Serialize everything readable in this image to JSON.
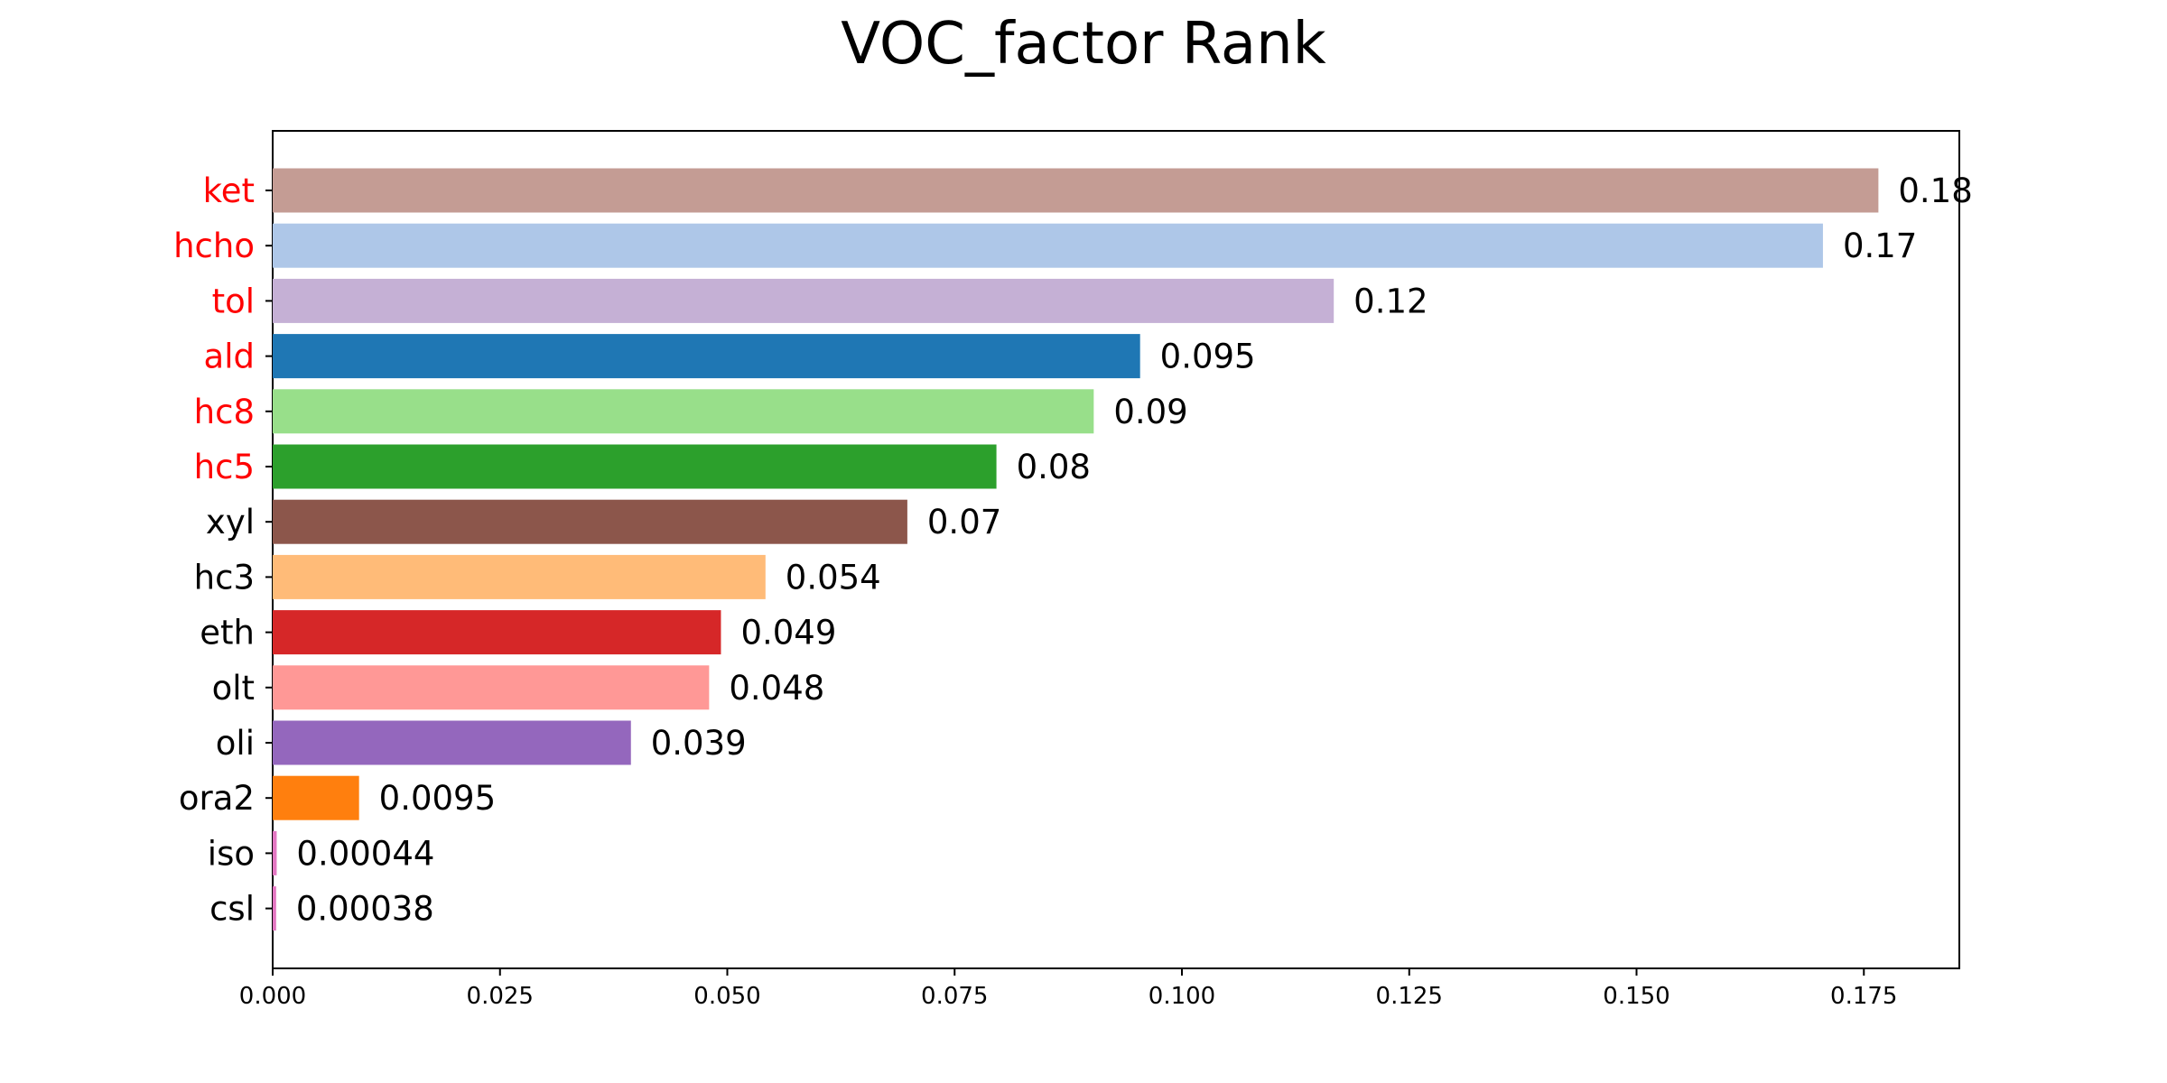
{
  "chart_data": {
    "type": "bar",
    "orientation": "horizontal",
    "title": "VOC_factor Rank",
    "xlabel": "",
    "ylabel": "",
    "xlim": [
      0,
      0.1855
    ],
    "xticks": [
      "0.000",
      "0.025",
      "0.050",
      "0.075",
      "0.100",
      "0.125",
      "0.150",
      "0.175"
    ],
    "xtick_values": [
      0,
      0.025,
      0.05,
      0.075,
      0.1,
      0.125,
      0.15,
      0.175
    ],
    "grid": false,
    "categories": [
      "ket",
      "hcho",
      "tol",
      "ald",
      "hc8",
      "hc5",
      "xyl",
      "hc3",
      "eth",
      "olt",
      "oli",
      "ora2",
      "iso",
      "csl"
    ],
    "values": [
      0.1766,
      0.1705,
      0.1167,
      0.0954,
      0.0903,
      0.0796,
      0.0698,
      0.0542,
      0.0493,
      0.048,
      0.0394,
      0.0095,
      0.00044,
      0.00038
    ],
    "value_labels": [
      "0.18",
      "0.17",
      "0.12",
      "0.095",
      "0.09",
      "0.08",
      "0.07",
      "0.054",
      "0.049",
      "0.048",
      "0.039",
      "0.0095",
      "0.00044",
      "0.00038"
    ],
    "bar_colors": [
      "#c49c94",
      "#aec7e8",
      "#c5b0d5",
      "#1f77b4",
      "#98df8a",
      "#2ca02c",
      "#8c564b",
      "#ffbb78",
      "#d62728",
      "#ff9896",
      "#9467bd",
      "#ff7f0e",
      "#e377c2",
      "#e377c2"
    ],
    "label_colors": [
      "#ff0000",
      "#ff0000",
      "#ff0000",
      "#ff0000",
      "#ff0000",
      "#ff0000",
      "#000000",
      "#000000",
      "#000000",
      "#000000",
      "#000000",
      "#000000",
      "#000000",
      "#000000"
    ]
  }
}
